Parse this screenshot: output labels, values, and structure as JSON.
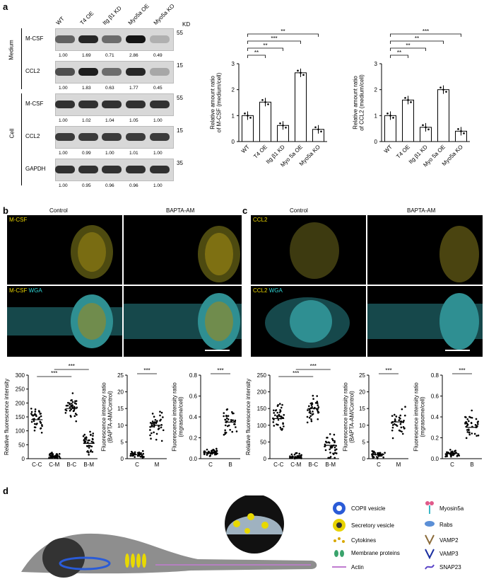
{
  "panel_a": {
    "letter": "a",
    "lanes": [
      "WT",
      "T4 OE",
      "Itg β1 KD",
      "Myo5a OE",
      "Myo5a KO"
    ],
    "kd": "KD",
    "section_medium": "Medium",
    "section_cell": "Cell",
    "blots": [
      {
        "label": "M-CSF",
        "marker": "55",
        "quant": [
          "1.00",
          "1.69",
          "0.71",
          "2.86",
          "0.49"
        ]
      },
      {
        "label": "CCL2",
        "marker": "15",
        "quant": [
          "1.00",
          "1.83",
          "0.63",
          "1.77",
          "0.45"
        ]
      },
      {
        "label": "M-CSF",
        "marker": "55",
        "quant": [
          "1.00",
          "1.02",
          "1.04",
          "1.05",
          "1.00"
        ]
      },
      {
        "label": "CCL2",
        "marker": "15",
        "quant": [
          "1.00",
          "0.99",
          "1.00",
          "1.01",
          "1.00"
        ]
      },
      {
        "label": "GAPDH",
        "marker": "35",
        "quant": [
          "1.00",
          "0.95",
          "0.96",
          "0.96",
          "1.00"
        ]
      }
    ]
  },
  "panel_b": {
    "letter": "b",
    "control": "Control",
    "treat": "BAPTA-AM",
    "top_label": "M-CSF",
    "bottom_label_a": "M-CSF",
    "bottom_label_b": "WGA"
  },
  "panel_c": {
    "letter": "c",
    "control": "Control",
    "treat": "BAPTA-AM",
    "top_label": "CCL2",
    "bottom_label_a": "CCL2",
    "bottom_label_b": "WGA"
  },
  "panel_d": {
    "letter": "d",
    "legend_left": [
      "COPII vesicle",
      "Secretory vesicle",
      "Cytokines",
      "Membrane proteins",
      "Actin"
    ],
    "legend_right": [
      "Myosin5a",
      "Rabs",
      "VAMP2",
      "VAMP3",
      "SNAP23"
    ]
  },
  "chart_data": [
    {
      "type": "bar",
      "categories": [
        "WT",
        "T4 OE",
        "Itg β1 KD",
        "Myo 5a OE",
        "Myo5a KO"
      ],
      "values": [
        1.0,
        1.52,
        0.62,
        2.65,
        0.47
      ],
      "ylabel": "Relative amount ratio\nof M-CSF (medium/cell)",
      "ylim": [
        0,
        3
      ],
      "yticks": [
        0,
        1,
        2,
        3
      ],
      "sig": [
        "**",
        "***",
        "**",
        "**",
        "**"
      ]
    },
    {
      "type": "bar",
      "categories": [
        "WT",
        "T4 OE",
        "Itg β1 KD",
        "Myo 5a OE",
        "Myo5a KO"
      ],
      "values": [
        1.0,
        1.6,
        0.55,
        2.0,
        0.4
      ],
      "ylabel": "Relative amount ratio\nof CCL2 (medium/cell)",
      "ylim": [
        0,
        3
      ],
      "yticks": [
        0,
        1,
        2,
        3
      ],
      "sig": [
        "**",
        "**",
        "**",
        "***",
        "**"
      ]
    },
    {
      "type": "scatter",
      "categories": [
        "C-C",
        "C-M",
        "B-C",
        "B-M"
      ],
      "means": [
        140,
        10,
        180,
        55
      ],
      "ylabel": "Relative fluorescence intensity",
      "ylim": [
        0,
        300
      ],
      "yticks": [
        0,
        50,
        100,
        150,
        200,
        250,
        300
      ],
      "sig": [
        "***",
        "***"
      ]
    },
    {
      "type": "scatter",
      "categories": [
        "C",
        "M"
      ],
      "means": [
        1.2,
        10
      ],
      "ylabel": "Fluorescence intensity ratio\n(BAPTA-AM/Control)",
      "ylim": [
        0,
        25
      ],
      "yticks": [
        0,
        5,
        10,
        15,
        20,
        25
      ],
      "sig": [
        "***"
      ]
    },
    {
      "type": "scatter",
      "categories": [
        "C",
        "B"
      ],
      "means": [
        0.06,
        0.35
      ],
      "ylabel": "Fluorescence intensity ratio\n(mgrasome/cell)",
      "ylim": [
        0,
        0.8
      ],
      "yticks": [
        0.0,
        0.2,
        0.4,
        0.6,
        0.8
      ],
      "sig": [
        "***"
      ]
    },
    {
      "type": "scatter",
      "categories": [
        "C-C",
        "C-M",
        "B-C",
        "B-M"
      ],
      "means": [
        120,
        5,
        150,
        40
      ],
      "ylabel": "Relative fluorescence intensity",
      "ylim": [
        0,
        250
      ],
      "yticks": [
        0,
        50,
        100,
        150,
        200,
        250
      ],
      "sig": [
        "***",
        "***"
      ]
    },
    {
      "type": "scatter",
      "categories": [
        "C",
        "M"
      ],
      "means": [
        1.2,
        11
      ],
      "ylabel": "Fluorescence intensity ratio\n(BAPTA-AM/Control)",
      "ylim": [
        0,
        25
      ],
      "yticks": [
        0,
        5,
        10,
        15,
        20,
        25
      ],
      "sig": [
        "***"
      ]
    },
    {
      "type": "scatter",
      "categories": [
        "C",
        "B"
      ],
      "means": [
        0.05,
        0.3
      ],
      "ylabel": "Fluorescence intensity ratio\n(mgrasome/cell)",
      "ylim": [
        0,
        0.8
      ],
      "yticks": [
        0.0,
        0.2,
        0.4,
        0.6,
        0.8
      ],
      "sig": [
        "***"
      ]
    }
  ]
}
